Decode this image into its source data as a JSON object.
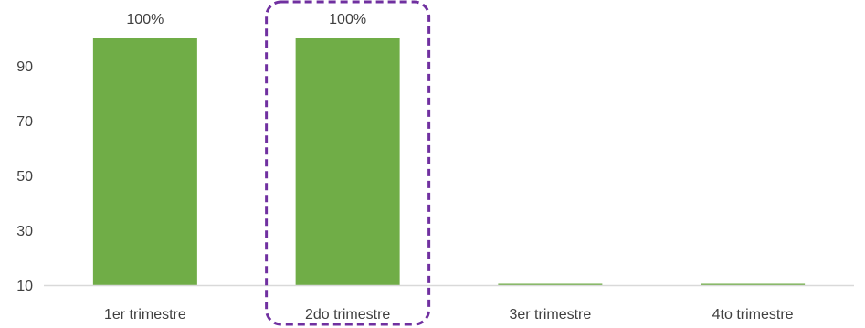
{
  "chart_data": {
    "type": "bar",
    "categories": [
      "1er trimestre",
      "2do trimestre",
      "3er trimestre",
      "4to trimestre"
    ],
    "values": [
      100,
      100,
      10,
      10
    ],
    "data_labels": [
      "100%",
      "100%",
      "",
      ""
    ],
    "y_ticks": [
      10,
      30,
      50,
      70,
      90
    ],
    "y_tick_labels": [
      "10",
      "30",
      "50",
      "70",
      "90"
    ],
    "ylim": [
      10,
      100
    ],
    "title": "",
    "xlabel": "",
    "ylabel": "",
    "grid": false,
    "legend": "none",
    "highlighted_category": "2do trimestre",
    "colors": {
      "bar": "#70ad47",
      "highlight_border": "#7030a0",
      "axis": "#d9d9d9",
      "text": "#404040"
    }
  }
}
